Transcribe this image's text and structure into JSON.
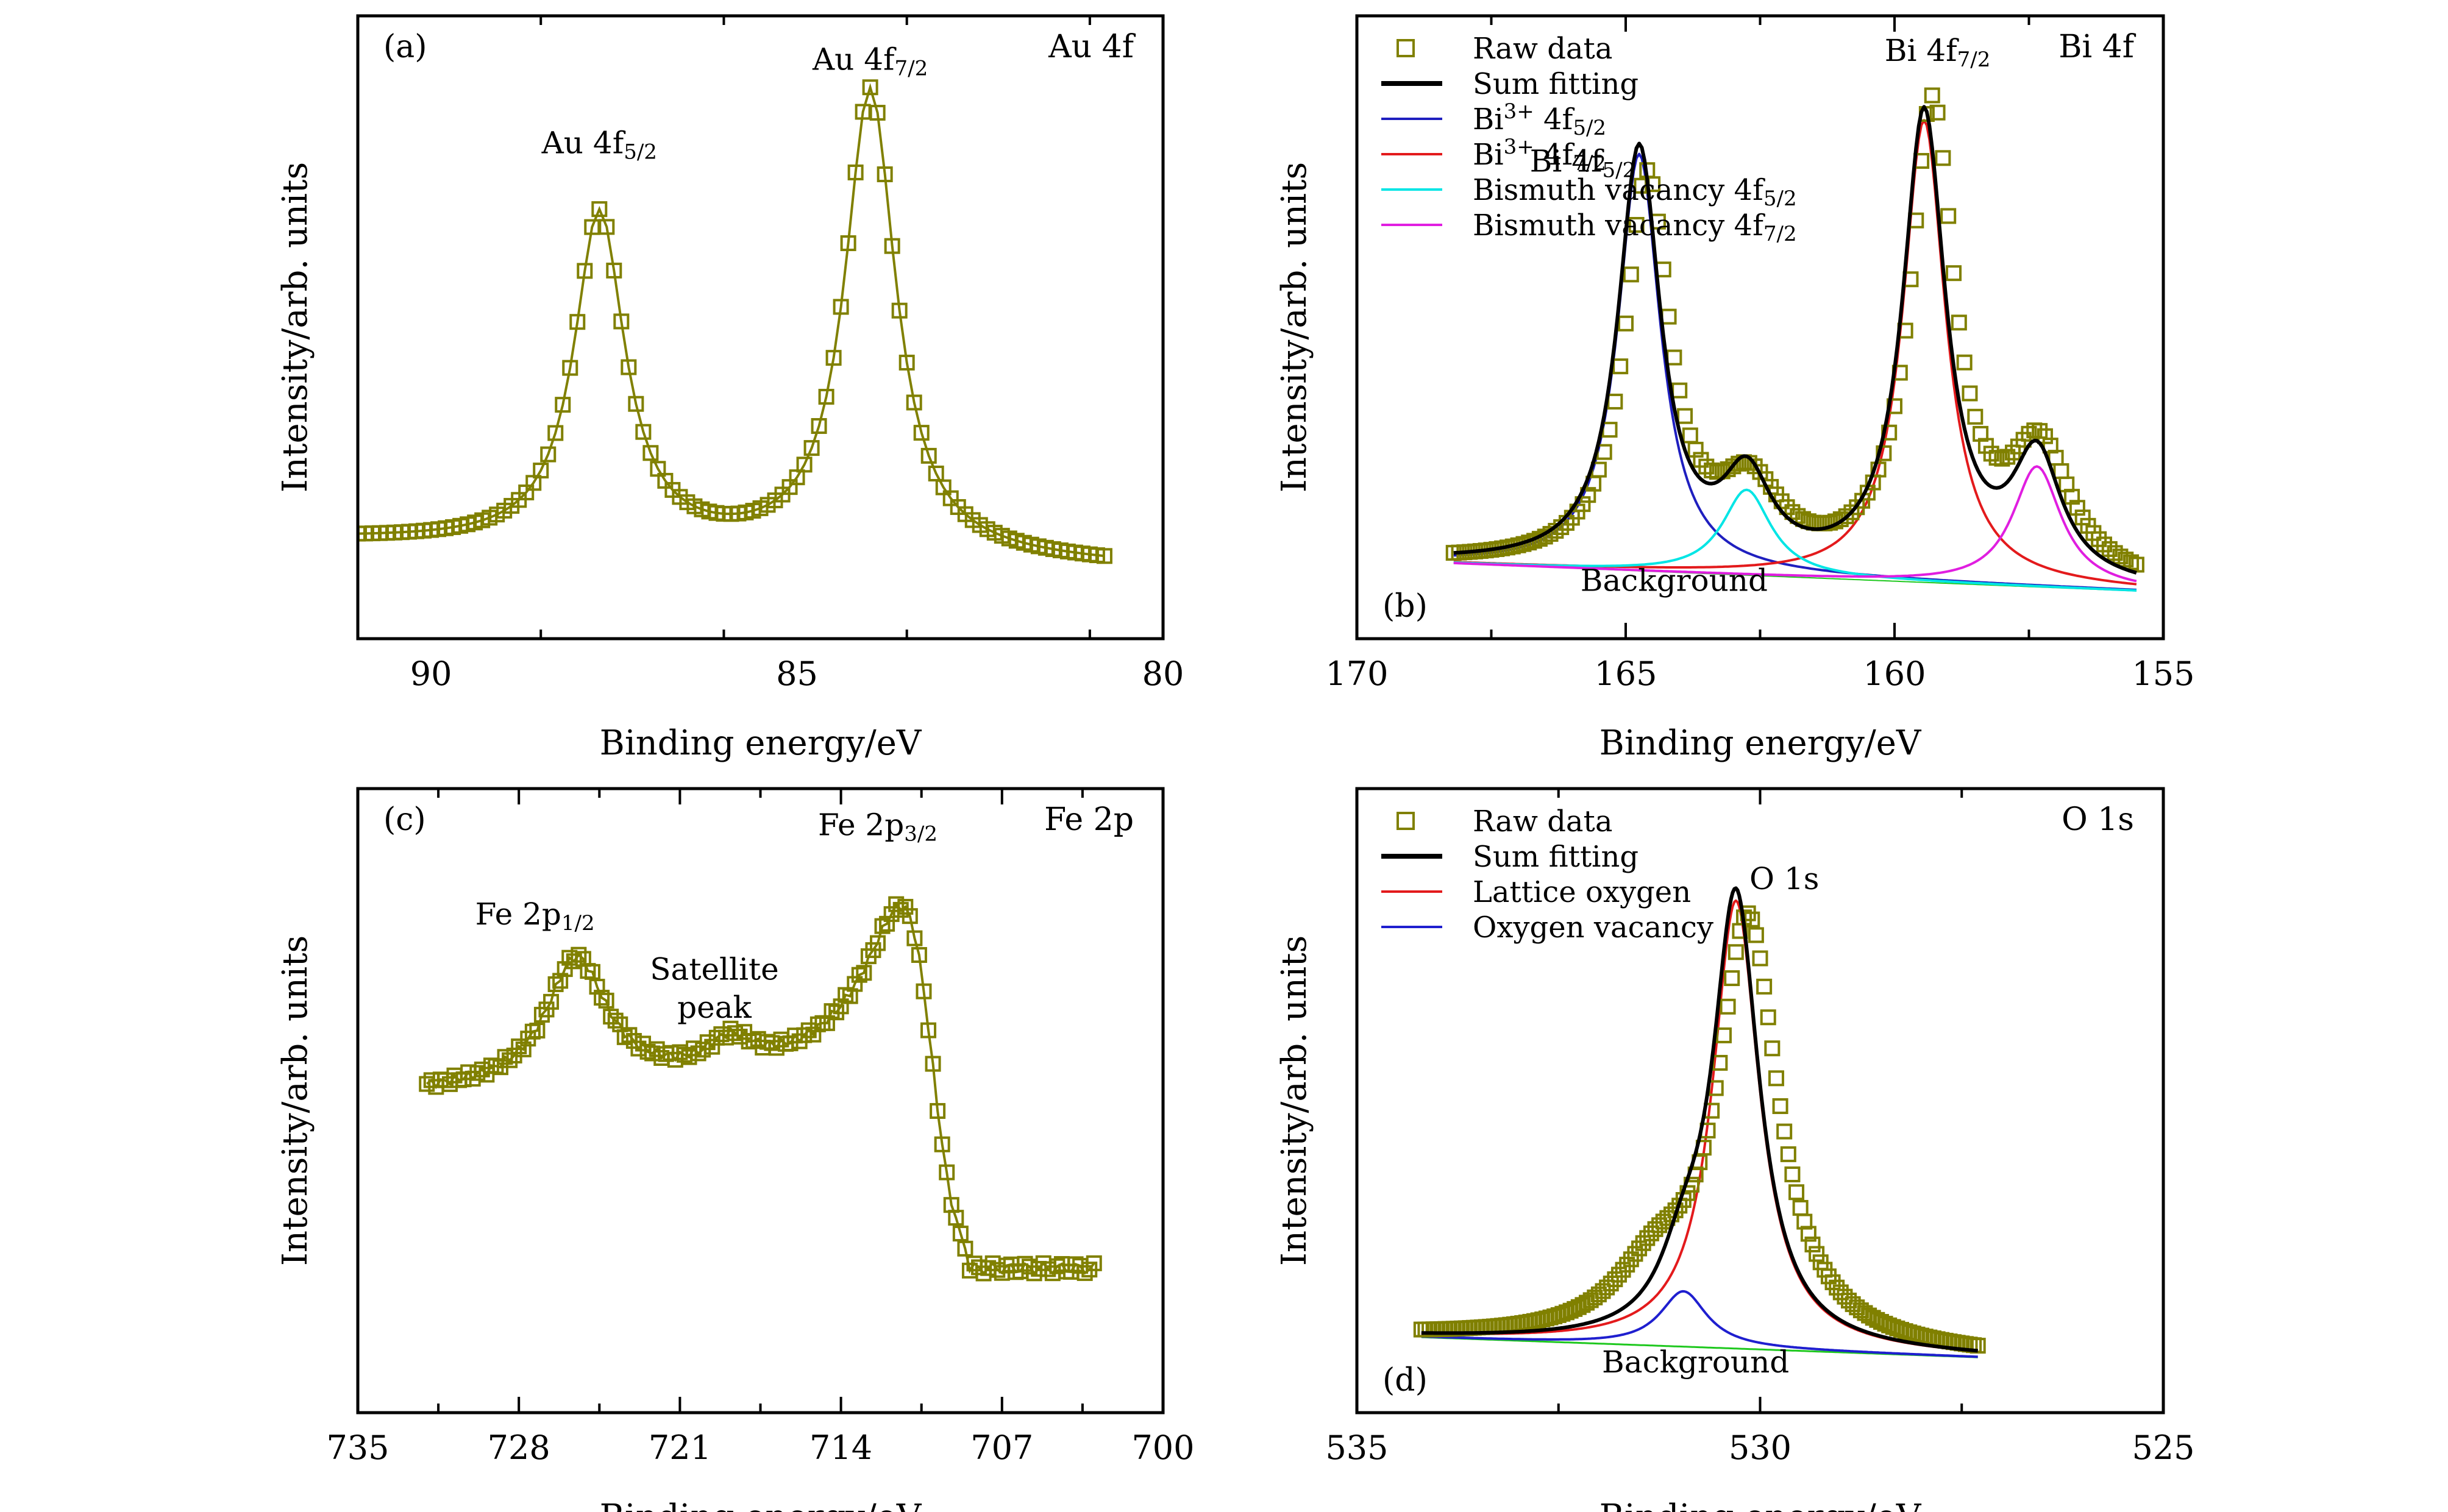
{
  "colors": {
    "raw": "#808000",
    "sum": "#000000",
    "bi_5_2": "#1f1fbf",
    "bi_7_2": "#e31a1c",
    "vac_5_2": "#00e5e5",
    "vac_7_2": "#e01ee0",
    "lattice": "#e31a1c",
    "ovac": "#1f1fcf",
    "background_line": "#1ec81e"
  },
  "chart_data": [
    {
      "id": "a",
      "type": "scatter",
      "panel_label": "(a)",
      "region_label": "Au 4f",
      "xlabel": "Binding energy/eV",
      "ylabel": "Intensity/arb. units",
      "xlim": [
        91,
        80
      ],
      "ylim": [
        -0.15,
        1.12
      ],
      "xticks": [
        90,
        85,
        80
      ],
      "tick_labels": [
        "90",
        "85",
        "80"
      ],
      "grid": false,
      "annotations": [
        {
          "base": "Au 4f",
          "sub": "5/2",
          "x": 87.7,
          "y": 0.84
        },
        {
          "base": "Au 4f",
          "sub": "7/2",
          "x": 84.0,
          "y": 1.01
        }
      ],
      "series": [
        {
          "name": "Raw data",
          "kind": "raw",
          "color_key": "raw",
          "x_range": [
            91.0,
            80.8
          ],
          "step": 0.1,
          "baseline": [
            0.05,
            0.0
          ],
          "peaks": [
            {
              "center": 87.7,
              "amp": 0.68,
              "width": 0.42
            },
            {
              "center": 84.0,
              "amp": 0.95,
              "width": 0.42
            }
          ]
        }
      ]
    },
    {
      "id": "b",
      "type": "scatter",
      "panel_label": "(b)",
      "region_label": "Bi 4f",
      "xlabel": "Binding energy/eV",
      "ylabel": "Intensity/arb. units",
      "xlim": [
        170,
        155
      ],
      "ylim": [
        -0.12,
        1.12
      ],
      "xticks": [
        170,
        165,
        160,
        155
      ],
      "tick_labels": [
        "170",
        "165",
        "160",
        "155"
      ],
      "grid": false,
      "legend": {
        "placement": "top-left",
        "entries": [
          {
            "kind": "square",
            "color_key": "raw",
            "parts": [
              {
                "t": "Raw data"
              }
            ]
          },
          {
            "kind": "line",
            "color_key": "sum",
            "parts": [
              {
                "t": "Sum fitting"
              }
            ]
          },
          {
            "kind": "line",
            "color_key": "bi_5_2",
            "parts": [
              {
                "t": "Bi"
              },
              {
                "t": "3+",
                "s": "sup"
              },
              {
                "t": " 4f"
              },
              {
                "t": "5/2",
                "s": "sub"
              }
            ]
          },
          {
            "kind": "line",
            "color_key": "bi_7_2",
            "parts": [
              {
                "t": "Bi"
              },
              {
                "t": "3+",
                "s": "sup"
              },
              {
                "t": " 4f"
              },
              {
                "t": "7/2",
                "s": "sub"
              }
            ]
          },
          {
            "kind": "line",
            "color_key": "vac_5_2",
            "parts": [
              {
                "t": "Bismuth vacancy 4f"
              },
              {
                "t": "5/2",
                "s": "sub"
              }
            ]
          },
          {
            "kind": "line",
            "color_key": "vac_7_2",
            "parts": [
              {
                "t": "Bismuth vacancy 4f"
              },
              {
                "t": "7/2",
                "s": "sub"
              }
            ]
          }
        ]
      },
      "annotations": [
        {
          "base": "Bi 4f",
          "sub": "5/2",
          "x": 165.8,
          "y": 0.81
        },
        {
          "base": "Bi 4f",
          "sub": "7/2",
          "x": 159.2,
          "y": 1.03
        },
        {
          "base": "Background",
          "x": 164.1,
          "y": -0.025
        }
      ],
      "series": [
        {
          "name": "Background",
          "kind": "line",
          "color_key": "background_line",
          "width": 2,
          "x_range": [
            168.2,
            155.5
          ],
          "step": 0.05,
          "baseline": [
            0.03,
            -0.025
          ],
          "peaks": []
        },
        {
          "name": "Bi3+ 4f5/2",
          "kind": "line",
          "color_key": "bi_5_2",
          "width": 4,
          "x_range": [
            168.2,
            155.5
          ],
          "step": 0.05,
          "baseline": [
            0.03,
            -0.025
          ],
          "peaks": [
            {
              "center": 164.75,
              "amp": 0.83,
              "width": 0.48
            }
          ]
        },
        {
          "name": "Bi3+ 4f7/2",
          "kind": "line",
          "color_key": "bi_7_2",
          "width": 4,
          "x_range": [
            168.2,
            155.5
          ],
          "step": 0.05,
          "baseline": [
            0.03,
            -0.025
          ],
          "peaks": [
            {
              "center": 159.45,
              "amp": 0.92,
              "width": 0.48
            }
          ]
        },
        {
          "name": "Bismuth vacancy 4f5/2",
          "kind": "line",
          "color_key": "vac_5_2",
          "width": 4,
          "x_range": [
            168.2,
            155.5
          ],
          "step": 0.05,
          "baseline": [
            0.03,
            -0.025
          ],
          "peaks": [
            {
              "center": 162.75,
              "amp": 0.17,
              "width": 0.55
            }
          ]
        },
        {
          "name": "Bismuth vacancy 4f7/2",
          "kind": "line",
          "color_key": "vac_7_2",
          "width": 4,
          "x_range": [
            168.2,
            155.5
          ],
          "step": 0.05,
          "baseline": [
            0.03,
            -0.025
          ],
          "peaks": [
            {
              "center": 157.35,
              "amp": 0.24,
              "width": 0.55
            }
          ]
        },
        {
          "name": "Raw data",
          "kind": "raw",
          "color_key": "raw",
          "x_range": [
            168.2,
            155.5
          ],
          "step": 0.1,
          "baseline": [
            0.03,
            -0.025
          ],
          "peaks": [
            {
              "center": 164.6,
              "amp": 0.77,
              "width": 0.5
            },
            {
              "center": 162.7,
              "amp": 0.15,
              "width": 0.7
            },
            {
              "center": 159.3,
              "amp": 0.93,
              "width": 0.5
            },
            {
              "center": 157.3,
              "amp": 0.25,
              "width": 0.7
            }
          ]
        },
        {
          "name": "Sum fitting",
          "kind": "line",
          "color_key": "sum",
          "width": 6,
          "x_range": [
            168.2,
            155.5
          ],
          "step": 0.05,
          "baseline": [
            0.03,
            -0.025
          ],
          "peaks": [
            {
              "center": 164.75,
              "amp": 0.83,
              "width": 0.48
            },
            {
              "center": 159.45,
              "amp": 0.92,
              "width": 0.48
            },
            {
              "center": 162.75,
              "amp": 0.17,
              "width": 0.55
            },
            {
              "center": 157.35,
              "amp": 0.24,
              "width": 0.55
            }
          ]
        }
      ]
    },
    {
      "id": "c",
      "type": "scatter",
      "panel_label": "(c)",
      "region_label": "Fe 2p",
      "xlabel": "Binding energy/eV",
      "ylabel": "Intensity/arb. units",
      "xlim": [
        735,
        700
      ],
      "ylim": [
        -0.35,
        1.12
      ],
      "xticks": [
        735,
        728,
        721,
        714,
        707,
        700
      ],
      "tick_labels": [
        "735",
        "728",
        "721",
        "714",
        "707",
        "700"
      ],
      "grid": false,
      "annotations": [
        {
          "base": "Fe 2p",
          "sub": "1/2",
          "x": 727.3,
          "y": 0.8
        },
        {
          "base": "Satellite",
          "x": 719.5,
          "y": 0.67
        },
        {
          "base": "peak",
          "x": 719.5,
          "y": 0.58
        },
        {
          "base": "Fe 2p",
          "sub": "3/2",
          "x": 712.4,
          "y": 1.01
        }
      ],
      "series": [
        {
          "name": "Raw data",
          "kind": "raw",
          "color_key": "raw",
          "x_range": [
            732.0,
            703.0
          ],
          "step": 0.2,
          "tail_start": 708.4,
          "tail_value": -0.01,
          "baseline": [
            0.4,
            0.44
          ],
          "peaks": [
            {
              "center": 725.5,
              "amp": 0.3,
              "width": 1.6
            },
            {
              "center": 718.8,
              "amp": 0.07,
              "width": 1.2
            },
            {
              "center": 710.6,
              "amp": 0.53,
              "width": 2.4
            }
          ]
        }
      ]
    },
    {
      "id": "d",
      "type": "scatter",
      "panel_label": "(d)",
      "region_label": "O 1s",
      "xlabel": "Binding energy/eV",
      "ylabel": "Intensity/arb. units",
      "xlim": [
        535,
        525
      ],
      "ylim": [
        -0.12,
        1.12
      ],
      "xticks": [
        535,
        530,
        525
      ],
      "tick_labels": [
        "535",
        "530",
        "525"
      ],
      "grid": false,
      "legend": {
        "placement": "top-left",
        "entries": [
          {
            "kind": "square",
            "color_key": "raw",
            "parts": [
              {
                "t": "Raw data"
              }
            ]
          },
          {
            "kind": "line",
            "color_key": "sum",
            "parts": [
              {
                "t": "Sum fitting"
              }
            ]
          },
          {
            "kind": "line",
            "color_key": "lattice",
            "parts": [
              {
                "t": "Lattice oxygen"
              }
            ]
          },
          {
            "kind": "line",
            "color_key": "ovac",
            "parts": [
              {
                "t": "Oxygen vacancy"
              }
            ]
          }
        ]
      },
      "annotations": [
        {
          "base": "O 1s",
          "x": 529.7,
          "y": 0.92
        },
        {
          "base": "Background",
          "x": 530.8,
          "y": -0.04
        }
      ],
      "series": [
        {
          "name": "Background",
          "kind": "line",
          "color_key": "background_line",
          "width": 3,
          "x_range": [
            534.2,
            527.3
          ],
          "step": 0.02,
          "baseline": [
            0.03,
            -0.01
          ],
          "peaks": []
        },
        {
          "name": "Oxygen vacancy",
          "kind": "line",
          "color_key": "ovac",
          "width": 4,
          "x_range": [
            534.2,
            527.3
          ],
          "step": 0.02,
          "baseline": [
            0.03,
            -0.01
          ],
          "peaks": [
            {
              "center": 530.95,
              "amp": 0.11,
              "width": 0.35
            }
          ]
        },
        {
          "name": "Lattice oxygen",
          "kind": "line",
          "color_key": "lattice",
          "width": 4,
          "x_range": [
            534.2,
            527.3
          ],
          "step": 0.02,
          "baseline": [
            0.03,
            -0.01
          ],
          "peaks": [
            {
              "center": 530.3,
              "amp": 0.89,
              "width": 0.35
            }
          ]
        },
        {
          "name": "Raw data",
          "kind": "raw",
          "color_key": "raw",
          "x_range": [
            534.2,
            527.3
          ],
          "step": 0.05,
          "baseline": [
            0.03,
            -0.01
          ],
          "peaks": [
            {
              "center": 530.15,
              "amp": 0.84,
              "width": 0.45
            },
            {
              "center": 531.3,
              "amp": 0.12,
              "width": 0.6
            }
          ]
        },
        {
          "name": "Sum fitting",
          "kind": "line",
          "color_key": "sum",
          "width": 6,
          "x_range": [
            534.2,
            527.3
          ],
          "step": 0.02,
          "baseline": [
            0.03,
            -0.01
          ],
          "peaks": [
            {
              "center": 530.3,
              "amp": 0.89,
              "width": 0.35
            },
            {
              "center": 530.95,
              "amp": 0.11,
              "width": 0.35
            }
          ]
        }
      ]
    }
  ]
}
